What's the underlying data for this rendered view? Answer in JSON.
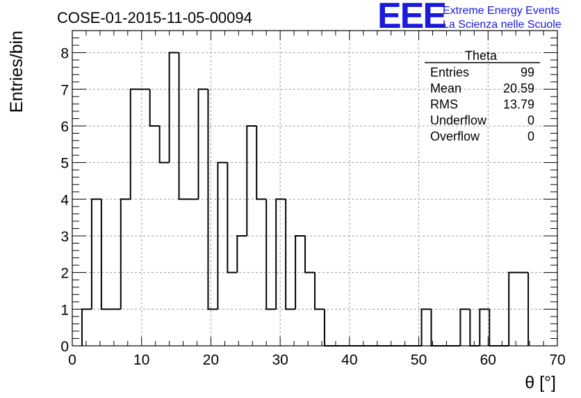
{
  "header": {
    "run_title": "COSE-01-2015-11-05-00094",
    "logo_mark": "EEE",
    "logo_line1": "Extreme Energy Events",
    "logo_line2": "La Scienza nelle Scuole"
  },
  "stats_box": {
    "name": "Theta",
    "rows": [
      {
        "label": "Entries",
        "value": "99"
      },
      {
        "label": "Mean",
        "value": "20.59"
      },
      {
        "label": "RMS",
        "value": "13.79"
      },
      {
        "label": "Underflow",
        "value": "0"
      },
      {
        "label": "Overflow",
        "value": "0"
      }
    ]
  },
  "chart_data": {
    "type": "bar",
    "subtype": "step-histogram",
    "title": "COSE-01-2015-11-05-00094",
    "xlabel": "θ [°]",
    "ylabel": "Entries/bin",
    "xlim": [
      0,
      70
    ],
    "ylim": [
      0,
      8.6
    ],
    "x_ticks": [
      0,
      10,
      20,
      30,
      40,
      50,
      60,
      70
    ],
    "y_ticks": [
      0,
      1,
      2,
      3,
      4,
      5,
      6,
      7,
      8
    ],
    "grid": true,
    "bin_width": 1.4,
    "bin_start": 1.4,
    "values": [
      1,
      4,
      1,
      1,
      4,
      7,
      7,
      6,
      5,
      8,
      4,
      4,
      7,
      1,
      5,
      2,
      3,
      6,
      4,
      1,
      4,
      1,
      3,
      2,
      1,
      0,
      0,
      0,
      0,
      0,
      0,
      0,
      0,
      0,
      0,
      1,
      0,
      0,
      0,
      1,
      0,
      1,
      0,
      0,
      2,
      2
    ],
    "line_color": "#000000"
  }
}
